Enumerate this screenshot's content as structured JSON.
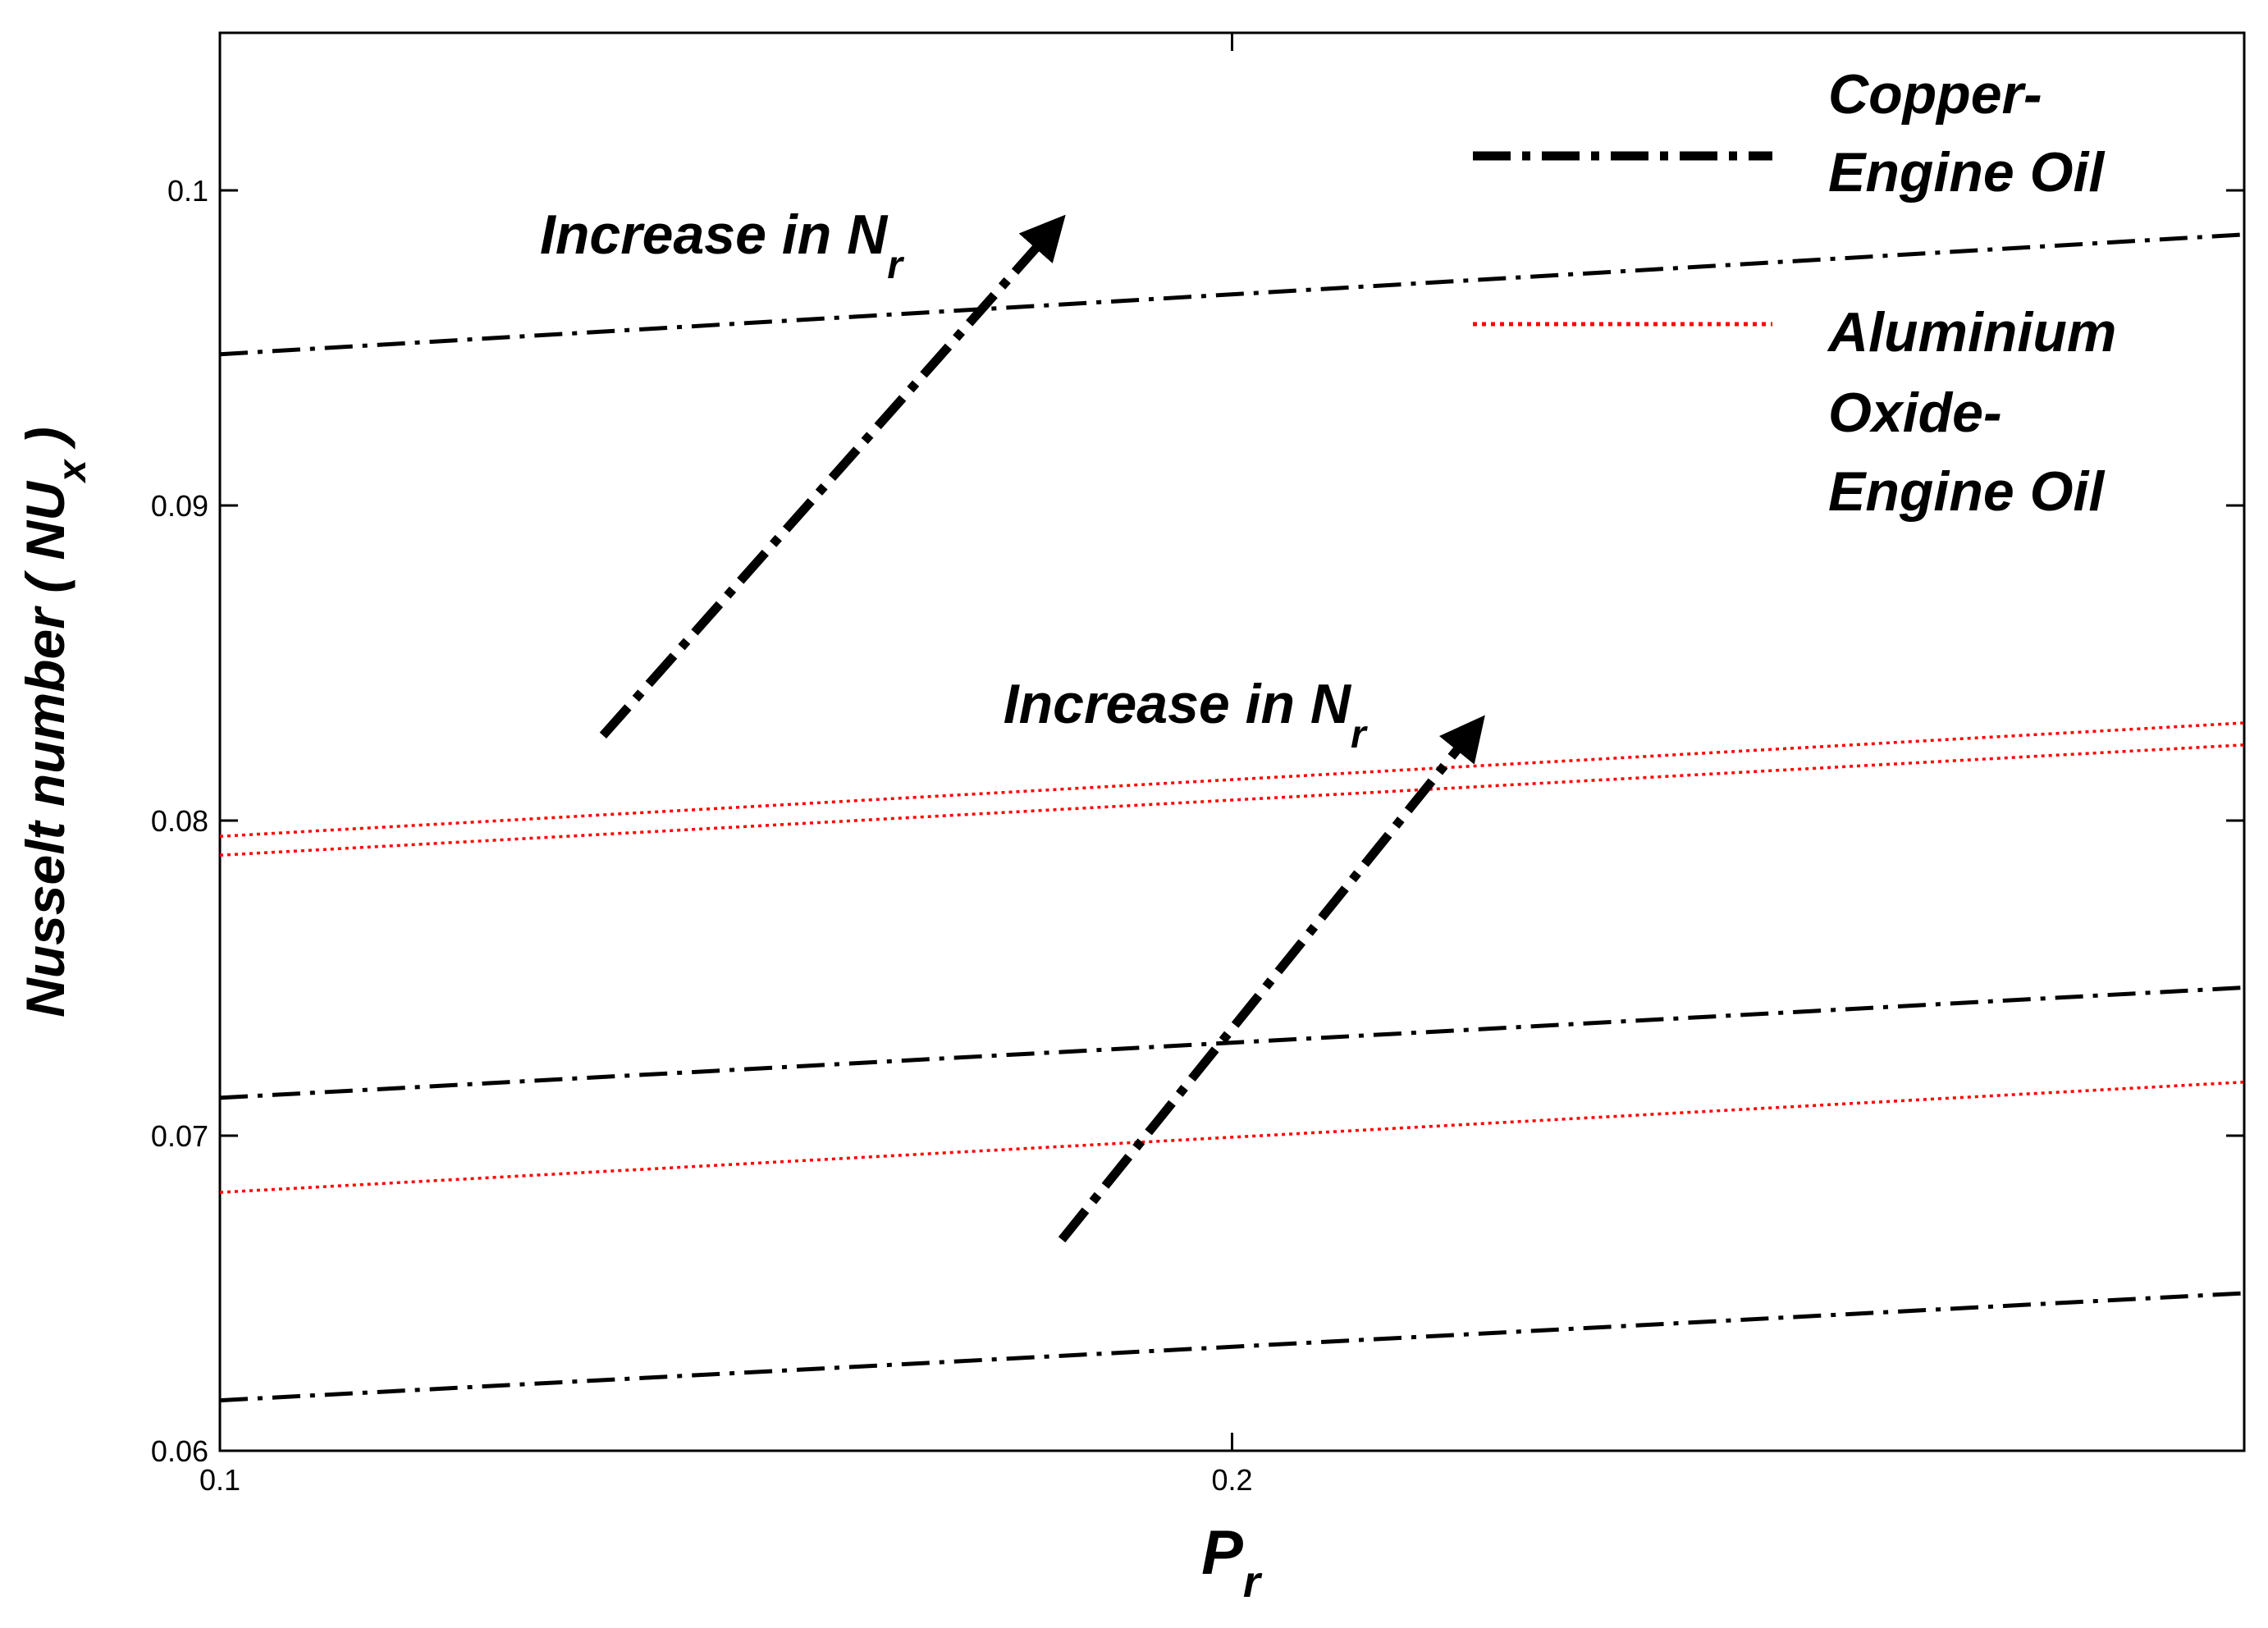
{
  "chart_data": {
    "type": "line",
    "title": "",
    "xlabel": {
      "main": "P",
      "sub": "r"
    },
    "ylabel": {
      "main": "Nusselt number ( NU",
      "sub": "x",
      "tail": " )"
    },
    "xscale": "log",
    "xlim": [
      0.1,
      0.4
    ],
    "ylim": [
      0.06,
      0.105
    ],
    "xticks": [
      0.1,
      0.2
    ],
    "xtick_labels": [
      "0.1",
      "0.2"
    ],
    "yticks": [
      0.06,
      0.07,
      0.08,
      0.09,
      0.1
    ],
    "ytick_labels": [
      "0.06",
      "0.07",
      "0.08",
      "0.09",
      "0.1"
    ],
    "grid": false,
    "legend_position": "top-right",
    "legend": [
      {
        "label_lines": [
          "Copper-",
          "Engine Oil"
        ],
        "color": "#000000",
        "style": "dashdot"
      },
      {
        "label_lines": [
          "Aluminium",
          "Oxide-",
          "Engine Oil"
        ],
        "color": "#ff0000",
        "style": "dotted"
      }
    ],
    "series": [
      {
        "group": "Copper-Engine Oil",
        "color": "#000000",
        "style": "dashdot",
        "x": [
          0.1,
          0.4
        ],
        "y": [
          0.0948,
          0.0986
        ]
      },
      {
        "group": "Copper-Engine Oil",
        "color": "#000000",
        "style": "dashdot",
        "x": [
          0.1,
          0.4
        ],
        "y": [
          0.0712,
          0.0747
        ]
      },
      {
        "group": "Copper-Engine Oil",
        "color": "#000000",
        "style": "dashdot",
        "x": [
          0.1,
          0.4
        ],
        "y": [
          0.0616,
          0.065
        ]
      },
      {
        "group": "Aluminium Oxide-Engine Oil",
        "color": "#ff0000",
        "style": "dotted",
        "x": [
          0.1,
          0.4
        ],
        "y": [
          0.0795,
          0.0831
        ]
      },
      {
        "group": "Aluminium Oxide-Engine Oil",
        "color": "#ff0000",
        "style": "dotted",
        "x": [
          0.1,
          0.4
        ],
        "y": [
          0.0789,
          0.0824
        ]
      },
      {
        "group": "Aluminium Oxide-Engine Oil",
        "color": "#ff0000",
        "style": "dotted",
        "x": [
          0.1,
          0.4
        ],
        "y": [
          0.0682,
          0.0717
        ]
      }
    ],
    "annotations": [
      {
        "text": "Increase in N",
        "sub": "r",
        "at": [
          0.1245,
          0.098
        ],
        "arrow_from": [
          0.13,
          0.0827
        ],
        "arrow_to": [
          0.177,
          0.0988
        ]
      },
      {
        "text": "Increase in N",
        "sub": "r",
        "at": [
          0.171,
          0.0831
        ],
        "arrow_from": [
          0.178,
          0.0667
        ],
        "arrow_to": [
          0.236,
          0.0829
        ]
      }
    ]
  }
}
